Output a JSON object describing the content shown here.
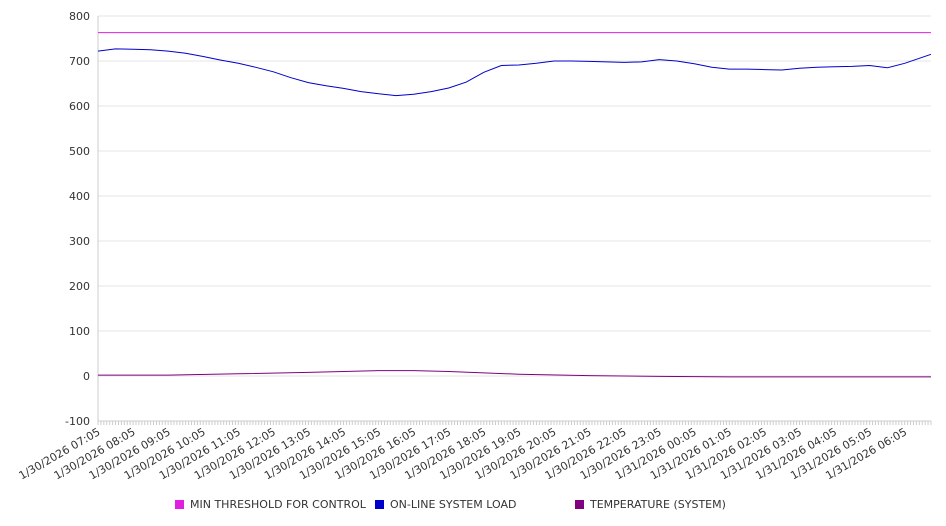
{
  "chart_data": {
    "type": "line",
    "title": "",
    "xlabel": "",
    "ylabel": "",
    "ylim": [
      -100,
      800
    ],
    "yticks": [
      -100,
      0,
      100,
      200,
      300,
      400,
      500,
      600,
      700,
      800
    ],
    "grid": "horizontal",
    "legend_position": "bottom",
    "x_start": "1/30/2026 07:05",
    "x_end": "1/31/2026 06:50",
    "xtick_labels": [
      "1/30/2026 07:05",
      "1/30/2026 08:05",
      "1/30/2026 09:05",
      "1/30/2026 10:05",
      "1/30/2026 11:05",
      "1/30/2026 12:05",
      "1/30/2026 13:05",
      "1/30/2026 14:05",
      "1/30/2026 15:05",
      "1/30/2026 16:05",
      "1/30/2026 17:05",
      "1/30/2026 18:05",
      "1/30/2026 19:05",
      "1/30/2026 20:05",
      "1/30/2026 21:05",
      "1/30/2026 22:05",
      "1/30/2026 23:05",
      "1/31/2026 00:05",
      "1/31/2026 01:05",
      "1/31/2026 02:05",
      "1/31/2026 03:05",
      "1/31/2026 04:05",
      "1/31/2026 05:05",
      "1/31/2026 06:05"
    ],
    "series": [
      {
        "name": "MIN THRESHOLD FOR CONTROL",
        "color": "#e020e0",
        "x": [
          "1/30/2026 07:05",
          "1/31/2026 06:50"
        ],
        "y": [
          763,
          763
        ]
      },
      {
        "name": "ON-LINE SYSTEM LOAD",
        "color": "#0000cc",
        "x": [
          "1/30/2026 07:05",
          "1/30/2026 07:35",
          "1/30/2026 08:05",
          "1/30/2026 08:35",
          "1/30/2026 09:05",
          "1/30/2026 09:35",
          "1/30/2026 10:05",
          "1/30/2026 10:35",
          "1/30/2026 11:05",
          "1/30/2026 11:35",
          "1/30/2026 12:05",
          "1/30/2026 12:35",
          "1/30/2026 13:05",
          "1/30/2026 13:35",
          "1/30/2026 14:05",
          "1/30/2026 14:35",
          "1/30/2026 15:05",
          "1/30/2026 15:35",
          "1/30/2026 16:05",
          "1/30/2026 16:35",
          "1/30/2026 17:05",
          "1/30/2026 17:35",
          "1/30/2026 18:05",
          "1/30/2026 18:35",
          "1/30/2026 19:05",
          "1/30/2026 19:35",
          "1/30/2026 20:05",
          "1/30/2026 20:35",
          "1/30/2026 21:05",
          "1/30/2026 21:35",
          "1/30/2026 22:05",
          "1/30/2026 22:35",
          "1/30/2026 23:05",
          "1/30/2026 23:35",
          "1/31/2026 00:05",
          "1/31/2026 00:35",
          "1/31/2026 01:05",
          "1/31/2026 01:35",
          "1/31/2026 02:05",
          "1/31/2026 02:35",
          "1/31/2026 03:05",
          "1/31/2026 03:35",
          "1/31/2026 04:05",
          "1/31/2026 04:35",
          "1/31/2026 05:05",
          "1/31/2026 05:35",
          "1/31/2026 06:05",
          "1/31/2026 06:50"
        ],
        "y": [
          722,
          727,
          726,
          725,
          722,
          717,
          710,
          702,
          695,
          686,
          676,
          663,
          652,
          645,
          639,
          632,
          627,
          623,
          626,
          632,
          640,
          653,
          675,
          690,
          691,
          695,
          700,
          700,
          699,
          698,
          697,
          698,
          703,
          700,
          694,
          686,
          682,
          682,
          681,
          680,
          684,
          686,
          687,
          688,
          690,
          685,
          695,
          715
        ]
      },
      {
        "name": "TEMPERATURE (SYSTEM)",
        "color": "#800080",
        "x": [
          "1/30/2026 07:05",
          "1/30/2026 09:05",
          "1/30/2026 11:05",
          "1/30/2026 13:05",
          "1/30/2026 15:05",
          "1/30/2026 16:05",
          "1/30/2026 17:05",
          "1/30/2026 19:05",
          "1/30/2026 21:05",
          "1/30/2026 23:05",
          "1/31/2026 01:05",
          "1/31/2026 03:05",
          "1/31/2026 05:05",
          "1/31/2026 06:50"
        ],
        "y": [
          2,
          2,
          5,
          8,
          12,
          12,
          10,
          4,
          1,
          -1,
          -2,
          -2,
          -2,
          -2
        ]
      }
    ]
  }
}
